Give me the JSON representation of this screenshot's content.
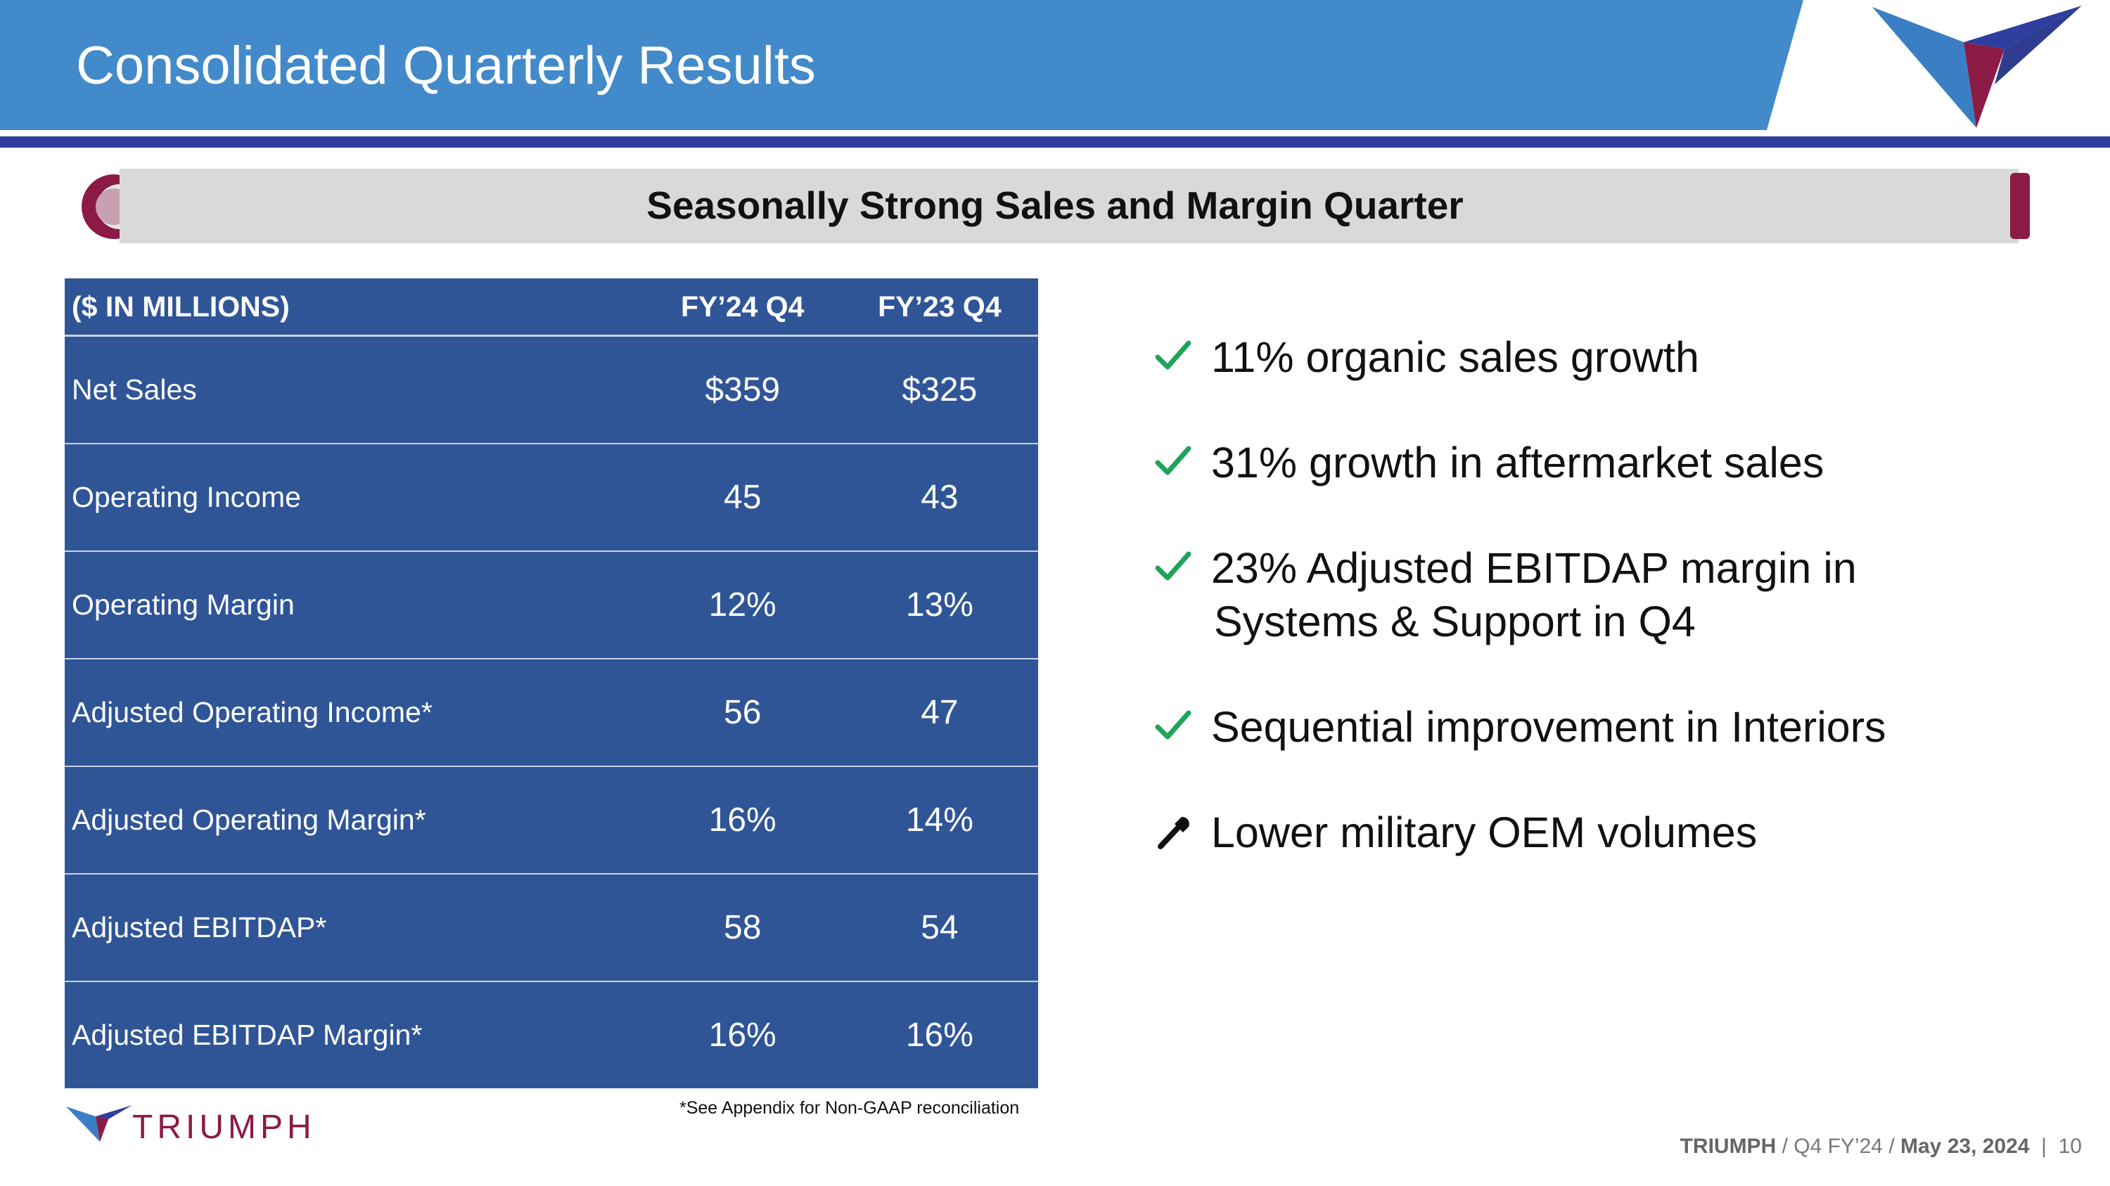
{
  "header": {
    "title": "Consolidated Quarterly Results"
  },
  "subtitle": "Seasonally Strong Sales and Margin Quarter",
  "table": {
    "columns": [
      "($ IN MILLIONS)",
      "FY’24 Q4",
      "FY’23 Q4"
    ],
    "rows": [
      {
        "label": "Net Sales",
        "fy24": "$359",
        "fy23": "$325"
      },
      {
        "label": "Operating Income",
        "fy24": "45",
        "fy23": "43"
      },
      {
        "label": "Operating Margin",
        "fy24": "12%",
        "fy23": "13%"
      },
      {
        "label": "Adjusted Operating Income*",
        "fy24": "56",
        "fy23": "47"
      },
      {
        "label": "Adjusted Operating Margin*",
        "fy24": "16%",
        "fy23": "14%"
      },
      {
        "label": "Adjusted EBITDAP*",
        "fy24": "58",
        "fy23": "54"
      },
      {
        "label": "Adjusted EBITDAP Margin*",
        "fy24": "16%",
        "fy23": "16%"
      }
    ],
    "footnote": "*See Appendix for Non-GAAP reconciliation"
  },
  "bullets": [
    {
      "icon": "check-icon",
      "line1": "11% organic sales growth",
      "line2": ""
    },
    {
      "icon": "check-icon",
      "line1": "31% growth in aftermarket sales",
      "line2": ""
    },
    {
      "icon": "check-icon",
      "line1": "23% Adjusted EBITDAP margin in",
      "line2": "Systems & Support in Q4"
    },
    {
      "icon": "check-icon",
      "line1": "Sequential improvement in Interiors",
      "line2": ""
    },
    {
      "icon": "wrench-icon",
      "line1": "Lower military OEM volumes",
      "line2": ""
    }
  ],
  "footer": {
    "brand": "TRIUMPH",
    "company": "TRIUMPH",
    "sep1": " / ",
    "period": "Q4 FY’24",
    "sep2": " / ",
    "date": "May 23, 2024",
    "sep3": "  |  ",
    "page": "10"
  },
  "colors": {
    "header_blue": "#428ac9",
    "navy": "#2f3e9e",
    "table_blue": "#2f5597",
    "maroon": "#8b1a44",
    "check_green": "#1fa35a"
  }
}
